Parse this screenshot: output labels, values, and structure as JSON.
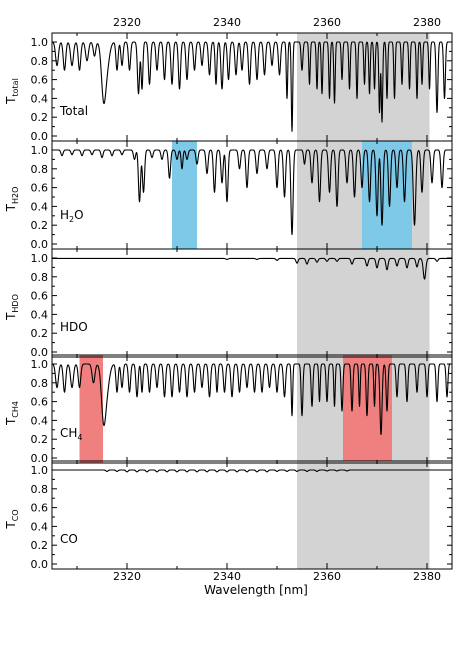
{
  "chart_data": {
    "type": "line",
    "xlabel": "Wavelength [nm]",
    "xlim": [
      2305,
      2385
    ],
    "x_ticks": [
      "2320",
      "2340",
      "2360",
      "2380"
    ],
    "y_ticks": [
      "0.0",
      "0.2",
      "0.4",
      "0.6",
      "0.8",
      "1.0"
    ],
    "ylim": [
      0,
      1.05
    ],
    "grid": false,
    "shared_gray_window": [
      2354,
      2380.5
    ],
    "panels": [
      {
        "id": "total",
        "ylabel": "T",
        "ylabel_sub": "total",
        "label": "Total",
        "label_sub": "",
        "label_tail": "",
        "highlights": [],
        "series": {
          "name": "Total",
          "base": 1.0,
          "lines": [
            [
              2306.0,
              0.25,
              0.4
            ],
            [
              2307.5,
              0.3,
              0.35
            ],
            [
              2309.0,
              0.25,
              0.4
            ],
            [
              2310.5,
              0.3,
              0.35
            ],
            [
              2312.0,
              0.2,
              0.4
            ],
            [
              2313.5,
              0.15,
              0.35
            ],
            [
              2315.3,
              0.55,
              0.6
            ],
            [
              2316.0,
              0.25,
              0.7
            ],
            [
              2318.0,
              0.3,
              0.3
            ],
            [
              2319.0,
              0.25,
              0.3
            ],
            [
              2320.5,
              0.3,
              0.3
            ],
            [
              2322.3,
              0.55,
              0.3
            ],
            [
              2323.0,
              0.5,
              0.25
            ],
            [
              2324.5,
              0.45,
              0.3
            ],
            [
              2326.0,
              0.3,
              0.3
            ],
            [
              2327.5,
              0.4,
              0.3
            ],
            [
              2329.0,
              0.45,
              0.3
            ],
            [
              2330.5,
              0.5,
              0.3
            ],
            [
              2332.0,
              0.4,
              0.3
            ],
            [
              2333.5,
              0.3,
              0.3
            ],
            [
              2335.0,
              0.25,
              0.3
            ],
            [
              2336.5,
              0.35,
              0.3
            ],
            [
              2337.8,
              0.45,
              0.25
            ],
            [
              2339.0,
              0.5,
              0.3
            ],
            [
              2340.3,
              0.4,
              0.3
            ],
            [
              2341.8,
              0.35,
              0.3
            ],
            [
              2343.0,
              0.3,
              0.3
            ],
            [
              2344.5,
              0.45,
              0.3
            ],
            [
              2346.0,
              0.4,
              0.3
            ],
            [
              2347.5,
              0.35,
              0.3
            ],
            [
              2349.0,
              0.25,
              0.3
            ],
            [
              2350.5,
              0.35,
              0.3
            ],
            [
              2352.0,
              0.6,
              0.2
            ],
            [
              2353.0,
              0.95,
              0.2
            ],
            [
              2355.0,
              0.3,
              0.25
            ],
            [
              2356.5,
              0.45,
              0.2
            ],
            [
              2358.0,
              0.5,
              0.2
            ],
            [
              2359.0,
              0.55,
              0.2
            ],
            [
              2360.5,
              0.6,
              0.2
            ],
            [
              2361.5,
              0.65,
              0.2
            ],
            [
              2363.0,
              0.4,
              0.2
            ],
            [
              2364.5,
              0.5,
              0.2
            ],
            [
              2366.0,
              0.6,
              0.2
            ],
            [
              2367.5,
              0.45,
              0.2
            ],
            [
              2368.5,
              0.55,
              0.2
            ],
            [
              2369.5,
              0.5,
              0.2
            ],
            [
              2370.5,
              0.75,
              0.2
            ],
            [
              2371.0,
              0.85,
              0.2
            ],
            [
              2372.0,
              0.6,
              0.2
            ],
            [
              2373.5,
              0.6,
              0.2
            ],
            [
              2375.0,
              0.45,
              0.2
            ],
            [
              2376.5,
              0.5,
              0.2
            ],
            [
              2378.0,
              0.6,
              0.2
            ],
            [
              2379.0,
              0.45,
              0.2
            ],
            [
              2380.5,
              0.5,
              0.2
            ],
            [
              2382.0,
              0.75,
              0.25
            ],
            [
              2383.5,
              0.6,
              0.25
            ]
          ]
        }
      },
      {
        "id": "h2o",
        "ylabel": "T",
        "ylabel_sub": "H2O",
        "label": "H",
        "label_sub": "2",
        "label_tail": "O",
        "highlights": [
          {
            "x0": 2329,
            "x1": 2334,
            "color": "#7ec8e8"
          },
          {
            "x0": 2367,
            "x1": 2377,
            "color": "#7ec8e8"
          }
        ],
        "series": {
          "name": "H2O",
          "base": 1.0,
          "lines": [
            [
              2307.0,
              0.06,
              0.3
            ],
            [
              2309.0,
              0.05,
              0.3
            ],
            [
              2311.0,
              0.06,
              0.3
            ],
            [
              2313.0,
              0.05,
              0.3
            ],
            [
              2315.0,
              0.08,
              0.3
            ],
            [
              2317.0,
              0.06,
              0.3
            ],
            [
              2319.0,
              0.05,
              0.3
            ],
            [
              2321.5,
              0.1,
              0.3
            ],
            [
              2322.5,
              0.55,
              0.3
            ],
            [
              2323.3,
              0.45,
              0.3
            ],
            [
              2325.0,
              0.08,
              0.3
            ],
            [
              2327.0,
              0.1,
              0.3
            ],
            [
              2328.5,
              0.3,
              0.3
            ],
            [
              2330.0,
              0.1,
              0.3
            ],
            [
              2331.0,
              0.2,
              0.25
            ],
            [
              2332.0,
              0.1,
              0.3
            ],
            [
              2334.0,
              0.15,
              0.3
            ],
            [
              2336.0,
              0.25,
              0.3
            ],
            [
              2337.5,
              0.45,
              0.3
            ],
            [
              2339.0,
              0.35,
              0.3
            ],
            [
              2340.0,
              0.55,
              0.3
            ],
            [
              2342.5,
              0.2,
              0.3
            ],
            [
              2344.0,
              0.4,
              0.3
            ],
            [
              2346.0,
              0.25,
              0.3
            ],
            [
              2348.0,
              0.2,
              0.3
            ],
            [
              2350.0,
              0.4,
              0.3
            ],
            [
              2351.5,
              0.5,
              0.3
            ],
            [
              2353.0,
              0.9,
              0.3
            ],
            [
              2355.5,
              0.15,
              0.25
            ],
            [
              2357.0,
              0.35,
              0.3
            ],
            [
              2358.5,
              0.55,
              0.3
            ],
            [
              2360.5,
              0.45,
              0.3
            ],
            [
              2362.0,
              0.6,
              0.3
            ],
            [
              2364.0,
              0.35,
              0.3
            ],
            [
              2365.5,
              0.5,
              0.3
            ],
            [
              2367.0,
              0.4,
              0.3
            ],
            [
              2368.5,
              0.55,
              0.3
            ],
            [
              2370.0,
              0.7,
              0.3
            ],
            [
              2371.0,
              0.8,
              0.3
            ],
            [
              2372.5,
              0.6,
              0.3
            ],
            [
              2374.0,
              0.4,
              0.3
            ],
            [
              2375.5,
              0.55,
              0.3
            ],
            [
              2377.5,
              0.8,
              0.35
            ],
            [
              2379.0,
              0.45,
              0.3
            ],
            [
              2381.0,
              0.35,
              0.3
            ],
            [
              2383.0,
              0.4,
              0.3
            ]
          ]
        }
      },
      {
        "id": "hdo",
        "ylabel": "T",
        "ylabel_sub": "HDO",
        "label": "HDO",
        "label_sub": "",
        "label_tail": "",
        "highlights": [],
        "series": {
          "name": "HDO",
          "base": 0.995,
          "lines": [
            [
              2340.0,
              0.01,
              0.3
            ],
            [
              2346.0,
              0.01,
              0.3
            ],
            [
              2350.0,
              0.02,
              0.3
            ],
            [
              2354.0,
              0.05,
              0.3
            ],
            [
              2356.0,
              0.06,
              0.3
            ],
            [
              2358.0,
              0.04,
              0.3
            ],
            [
              2360.0,
              0.03,
              0.3
            ],
            [
              2362.0,
              0.03,
              0.3
            ],
            [
              2365.0,
              0.06,
              0.3
            ],
            [
              2368.0,
              0.08,
              0.3
            ],
            [
              2370.0,
              0.1,
              0.3
            ],
            [
              2372.0,
              0.12,
              0.3
            ],
            [
              2374.0,
              0.08,
              0.3
            ],
            [
              2376.0,
              0.1,
              0.3
            ],
            [
              2378.0,
              0.09,
              0.3
            ],
            [
              2379.5,
              0.22,
              0.35
            ],
            [
              2382.0,
              0.03,
              0.3
            ]
          ]
        }
      },
      {
        "id": "ch4",
        "ylabel": "T",
        "ylabel_sub": "CH4",
        "label": "CH",
        "label_sub": "4",
        "label_tail": "",
        "highlights": [
          {
            "x0": 2310.5,
            "x1": 2315.2,
            "color": "#f08080"
          },
          {
            "x0": 2363.2,
            "x1": 2373,
            "color": "#f08080"
          }
        ],
        "series": {
          "name": "CH4",
          "base": 1.0,
          "lines": [
            [
              2306.0,
              0.25,
              0.4
            ],
            [
              2307.5,
              0.3,
              0.35
            ],
            [
              2309.0,
              0.25,
              0.4
            ],
            [
              2310.5,
              0.25,
              0.35
            ],
            [
              2313.3,
              0.2,
              0.4
            ],
            [
              2315.3,
              0.55,
              0.6
            ],
            [
              2316.0,
              0.25,
              0.7
            ],
            [
              2318.0,
              0.3,
              0.3
            ],
            [
              2319.0,
              0.25,
              0.3
            ],
            [
              2320.5,
              0.3,
              0.3
            ],
            [
              2322.0,
              0.35,
              0.3
            ],
            [
              2323.0,
              0.3,
              0.25
            ],
            [
              2324.5,
              0.3,
              0.3
            ],
            [
              2326.0,
              0.25,
              0.3
            ],
            [
              2327.5,
              0.35,
              0.3
            ],
            [
              2329.0,
              0.35,
              0.3
            ],
            [
              2330.5,
              0.3,
              0.3
            ],
            [
              2332.0,
              0.35,
              0.3
            ],
            [
              2333.5,
              0.3,
              0.3
            ],
            [
              2335.0,
              0.25,
              0.3
            ],
            [
              2336.5,
              0.35,
              0.3
            ],
            [
              2338.0,
              0.3,
              0.25
            ],
            [
              2339.5,
              0.3,
              0.3
            ],
            [
              2341.0,
              0.35,
              0.3
            ],
            [
              2342.5,
              0.3,
              0.3
            ],
            [
              2344.0,
              0.25,
              0.3
            ],
            [
              2345.5,
              0.3,
              0.3
            ],
            [
              2347.0,
              0.3,
              0.3
            ],
            [
              2348.5,
              0.25,
              0.3
            ],
            [
              2350.0,
              0.3,
              0.3
            ],
            [
              2351.5,
              0.35,
              0.3
            ],
            [
              2353.0,
              0.55,
              0.2
            ],
            [
              2355.0,
              0.55,
              0.25
            ],
            [
              2357.0,
              0.45,
              0.25
            ],
            [
              2358.5,
              0.4,
              0.2
            ],
            [
              2360.0,
              0.4,
              0.25
            ],
            [
              2361.5,
              0.45,
              0.2
            ],
            [
              2363.0,
              0.5,
              0.25
            ],
            [
              2365.0,
              0.5,
              0.25
            ],
            [
              2366.5,
              0.45,
              0.2
            ],
            [
              2368.0,
              0.55,
              0.25
            ],
            [
              2369.5,
              0.45,
              0.2
            ],
            [
              2370.8,
              0.75,
              0.3
            ],
            [
              2372.0,
              0.5,
              0.25
            ],
            [
              2374.0,
              0.35,
              0.25
            ],
            [
              2376.0,
              0.4,
              0.25
            ],
            [
              2378.0,
              0.3,
              0.25
            ],
            [
              2380.0,
              0.35,
              0.25
            ],
            [
              2382.0,
              0.4,
              0.25
            ],
            [
              2384.0,
              0.35,
              0.25
            ]
          ]
        }
      },
      {
        "id": "co",
        "ylabel": "T",
        "ylabel_sub": "CO",
        "label": "CO",
        "label_sub": "",
        "label_tail": "",
        "highlights": [],
        "series": {
          "name": "CO",
          "base": 1.0,
          "lines": [
            [
              2316.0,
              0.015,
              0.3
            ],
            [
              2318.0,
              0.015,
              0.3
            ],
            [
              2320.0,
              0.02,
              0.3
            ],
            [
              2322.0,
              0.02,
              0.3
            ],
            [
              2324.0,
              0.02,
              0.3
            ],
            [
              2326.0,
              0.02,
              0.3
            ],
            [
              2328.0,
              0.02,
              0.3
            ],
            [
              2330.0,
              0.02,
              0.3
            ],
            [
              2332.0,
              0.02,
              0.3
            ],
            [
              2334.0,
              0.02,
              0.3
            ],
            [
              2336.0,
              0.02,
              0.3
            ],
            [
              2338.0,
              0.02,
              0.3
            ],
            [
              2340.0,
              0.02,
              0.3
            ],
            [
              2342.0,
              0.02,
              0.3
            ],
            [
              2344.0,
              0.02,
              0.3
            ],
            [
              2346.0,
              0.02,
              0.3
            ],
            [
              2348.0,
              0.02,
              0.3
            ],
            [
              2350.0,
              0.015,
              0.3
            ],
            [
              2352.0,
              0.015,
              0.3
            ],
            [
              2354.0,
              0.015,
              0.3
            ],
            [
              2356.0,
              0.015,
              0.3
            ],
            [
              2358.0,
              0.015,
              0.3
            ],
            [
              2360.0,
              0.01,
              0.3
            ],
            [
              2362.0,
              0.01,
              0.3
            ],
            [
              2364.0,
              0.01,
              0.3
            ]
          ]
        }
      }
    ]
  }
}
